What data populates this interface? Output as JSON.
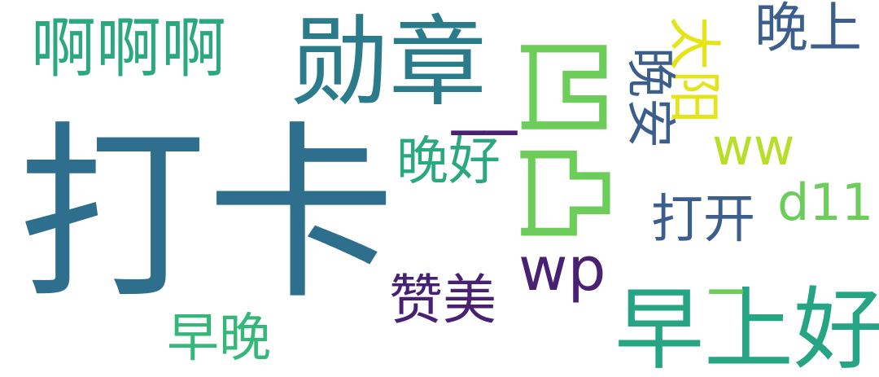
{
  "words": {
    "daka": "打卡",
    "xunzhang": "勋章",
    "aaa": "啊啊啊",
    "zaoshanghao": "早上好",
    "wanshang": "晚上",
    "wanhao": "晚好",
    "dakai": "打开",
    "zanmei": "赞美",
    "zaowan": "早晚",
    "wp": "wp",
    "ww": "ww",
    "d11": "d11",
    "underscore": "__",
    "dash": "_",
    "tuzhang": "凹凸",
    "taiyang": "太阳",
    "wanan": "晚安"
  },
  "colors": {
    "teal_dark": "#2e6f8e",
    "teal": "#21908d",
    "green_teal": "#2aa87e",
    "green": "#35b779",
    "light_green": "#6ccd5a",
    "yellow_green": "#b8de29",
    "yellow": "#e4e419",
    "purple": "#482173",
    "blue_slate": "#3b5e8c"
  }
}
